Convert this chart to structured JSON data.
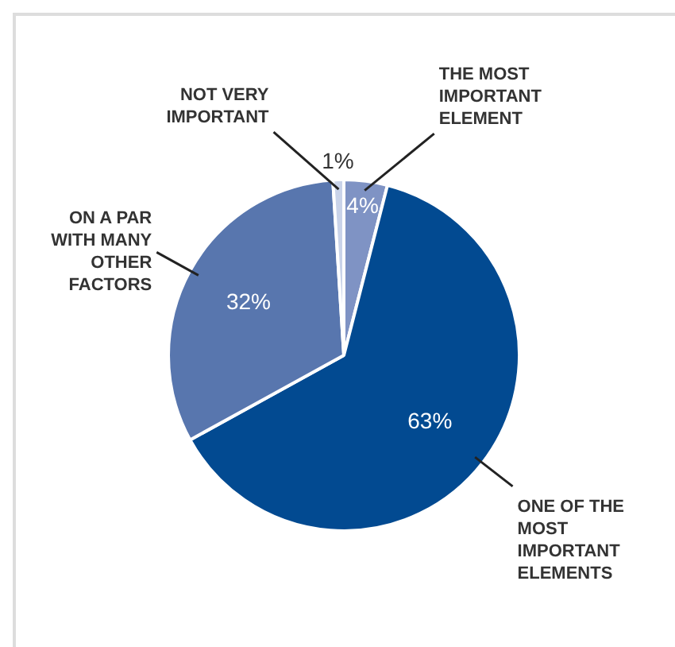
{
  "chart_data": {
    "type": "pie",
    "categories": [
      "THE MOST IMPORTANT ELEMENT",
      "ONE OF THE MOST IMPORTANT ELEMENTS",
      "ON A PAR WITH MANY OTHER FACTORS",
      "NOT VERY IMPORTANT"
    ],
    "values": [
      4,
      63,
      32,
      1
    ],
    "colors": [
      "#7f93c4",
      "#024a91",
      "#5876ae",
      "#c9d3e9"
    ],
    "value_labels": [
      "4%",
      "63%",
      "32%",
      "1%"
    ],
    "legend": false
  }
}
